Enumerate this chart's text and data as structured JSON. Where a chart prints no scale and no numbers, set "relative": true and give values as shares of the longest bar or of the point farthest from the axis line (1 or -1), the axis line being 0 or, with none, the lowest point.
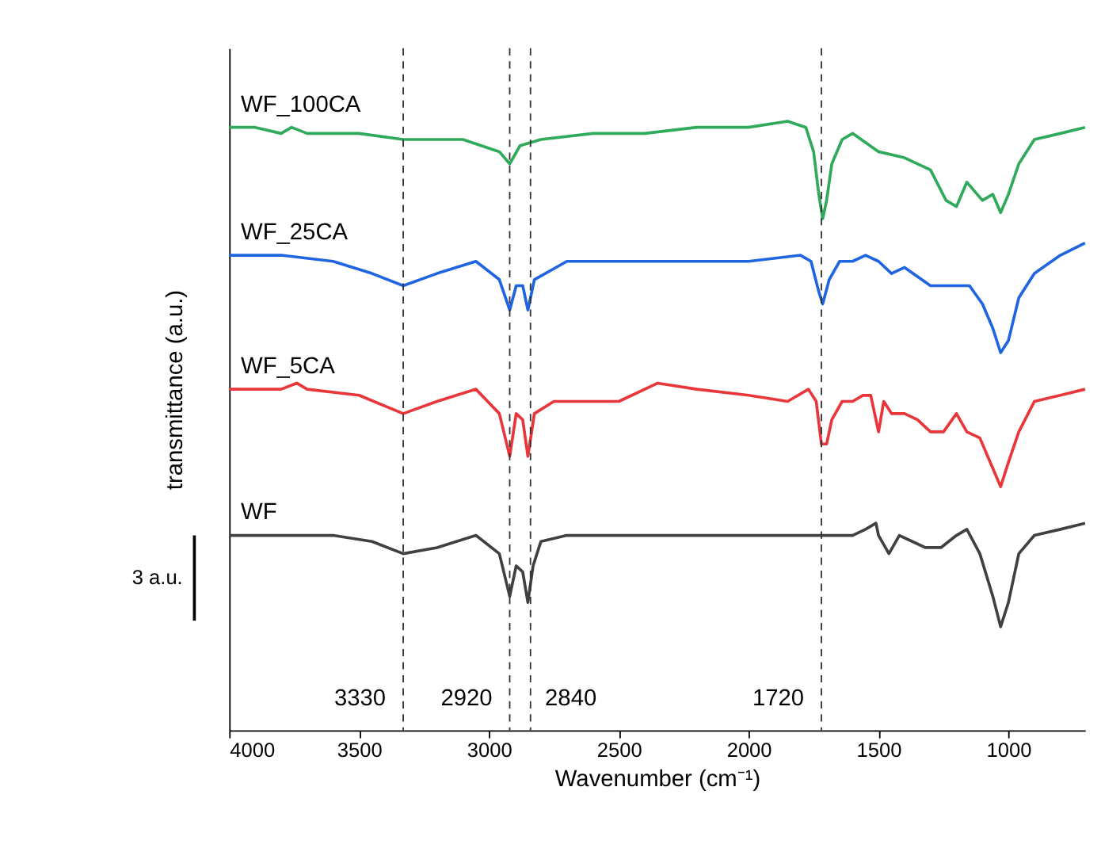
{
  "chart_data": {
    "type": "line",
    "relative": true,
    "xlabel": "Wavenumber (cm⁻¹)",
    "ylabel": "transmittance (a.u.)",
    "xlim": [
      4000,
      705
    ],
    "xticks": [
      4000,
      3500,
      3000,
      2500,
      2000,
      1500,
      1000
    ],
    "grid": false,
    "line_style": "solid",
    "marker": "none",
    "annotations": [
      "3 a.u."
    ],
    "ref_lines": [
      {
        "axis": "x",
        "value": 3330,
        "label": "3330",
        "color": "#333333",
        "line_style": "dashed"
      },
      {
        "axis": "x",
        "value": 2920,
        "label": "2920",
        "color": "#333333",
        "line_style": "dashed"
      },
      {
        "axis": "x",
        "value": 2840,
        "label": "2840",
        "color": "#333333",
        "line_style": "dashed"
      },
      {
        "axis": "x",
        "value": 1720,
        "label": "1720",
        "color": "#333333",
        "line_style": "dashed"
      }
    ],
    "series": [
      {
        "name": "WF",
        "color": "#404040",
        "x": [
          4000,
          3800,
          3600,
          3450,
          3330,
          3200,
          3050,
          2960,
          2920,
          2895,
          2870,
          2850,
          2830,
          2800,
          2700,
          2500,
          2300,
          2100,
          1900,
          1750,
          1720,
          1680,
          1600,
          1550,
          1510,
          1500,
          1460,
          1420,
          1370,
          1320,
          1260,
          1200,
          1160,
          1110,
          1060,
          1030,
          1000,
          960,
          900,
          800,
          705
        ],
        "values": [
          0.32,
          0.32,
          0.32,
          0.31,
          0.29,
          0.3,
          0.32,
          0.29,
          0.22,
          0.27,
          0.26,
          0.21,
          0.27,
          0.31,
          0.32,
          0.32,
          0.32,
          0.32,
          0.32,
          0.32,
          0.32,
          0.32,
          0.32,
          0.33,
          0.34,
          0.32,
          0.29,
          0.32,
          0.31,
          0.3,
          0.3,
          0.32,
          0.33,
          0.29,
          0.22,
          0.17,
          0.21,
          0.29,
          0.32,
          0.33,
          0.34
        ]
      },
      {
        "name": "WF_5CA",
        "color": "#e8363a",
        "x": [
          4000,
          3800,
          3740,
          3700,
          3500,
          3330,
          3200,
          3050,
          2960,
          2920,
          2895,
          2870,
          2850,
          2825,
          2750,
          2500,
          2350,
          2200,
          2000,
          1850,
          1770,
          1740,
          1720,
          1700,
          1680,
          1640,
          1600,
          1560,
          1530,
          1500,
          1480,
          1450,
          1400,
          1350,
          1300,
          1250,
          1200,
          1160,
          1110,
          1060,
          1030,
          1000,
          960,
          900,
          800,
          705
        ],
        "values": [
          0.56,
          0.56,
          0.57,
          0.56,
          0.55,
          0.52,
          0.54,
          0.56,
          0.52,
          0.45,
          0.52,
          0.51,
          0.45,
          0.52,
          0.54,
          0.54,
          0.57,
          0.56,
          0.55,
          0.54,
          0.56,
          0.54,
          0.47,
          0.47,
          0.51,
          0.54,
          0.54,
          0.55,
          0.55,
          0.49,
          0.54,
          0.52,
          0.52,
          0.51,
          0.49,
          0.49,
          0.52,
          0.49,
          0.48,
          0.43,
          0.4,
          0.44,
          0.49,
          0.54,
          0.55,
          0.56
        ]
      },
      {
        "name": "WF_25CA",
        "color": "#1f64e0",
        "x": [
          4000,
          3800,
          3600,
          3450,
          3330,
          3200,
          3050,
          2960,
          2920,
          2895,
          2870,
          2850,
          2825,
          2700,
          2500,
          2200,
          2000,
          1800,
          1760,
          1730,
          1715,
          1690,
          1650,
          1600,
          1550,
          1500,
          1450,
          1400,
          1300,
          1200,
          1150,
          1100,
          1060,
          1030,
          1000,
          960,
          900,
          800,
          705
        ],
        "values": [
          0.78,
          0.78,
          0.77,
          0.75,
          0.73,
          0.75,
          0.77,
          0.74,
          0.69,
          0.73,
          0.73,
          0.69,
          0.74,
          0.77,
          0.77,
          0.77,
          0.77,
          0.78,
          0.77,
          0.72,
          0.7,
          0.74,
          0.77,
          0.77,
          0.78,
          0.77,
          0.75,
          0.76,
          0.73,
          0.73,
          0.73,
          0.7,
          0.66,
          0.62,
          0.64,
          0.71,
          0.75,
          0.78,
          0.8
        ]
      },
      {
        "name": "WF_100CA",
        "color": "#2eaa5a",
        "x": [
          4000,
          3900,
          3800,
          3760,
          3700,
          3500,
          3330,
          3100,
          2960,
          2920,
          2880,
          2800,
          2600,
          2400,
          2200,
          2000,
          1850,
          1780,
          1750,
          1730,
          1715,
          1700,
          1680,
          1640,
          1600,
          1500,
          1400,
          1300,
          1240,
          1200,
          1160,
          1100,
          1060,
          1030,
          1000,
          960,
          900,
          800,
          705
        ],
        "values": [
          0.99,
          0.99,
          0.98,
          0.99,
          0.98,
          0.98,
          0.97,
          0.97,
          0.95,
          0.93,
          0.96,
          0.97,
          0.98,
          0.98,
          0.99,
          0.99,
          1.0,
          0.99,
          0.95,
          0.88,
          0.84,
          0.87,
          0.93,
          0.97,
          0.98,
          0.95,
          0.94,
          0.92,
          0.87,
          0.86,
          0.9,
          0.87,
          0.88,
          0.85,
          0.88,
          0.93,
          0.97,
          0.98,
          0.99
        ]
      }
    ]
  }
}
